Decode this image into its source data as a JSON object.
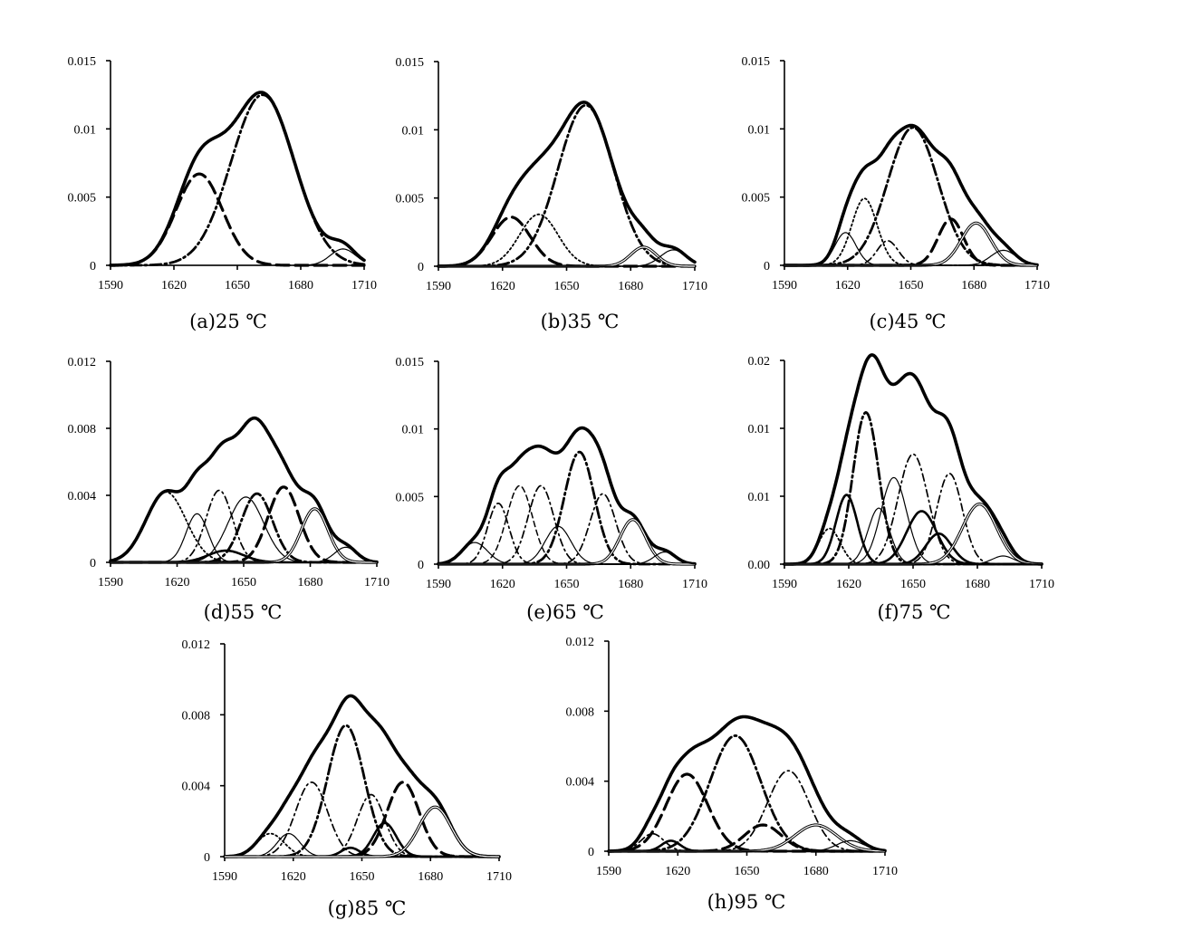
{
  "figure": {
    "background": "#ffffff",
    "line_color": "#000000"
  },
  "chart_data": [
    {
      "caption": "(a)25 ℃",
      "type": "line",
      "xticks": [
        "1590",
        "1620",
        "1650",
        "1680",
        "1710"
      ],
      "xlim": [
        1590,
        1710
      ],
      "yticks": [
        "0",
        "0.005",
        "0.01",
        "0.015"
      ],
      "ylim": [
        0,
        0.015
      ],
      "series": [
        {
          "style": "thick",
          "peaks": [
            [
              1632,
              0.0067,
              11
            ],
            [
              1662,
              0.0125,
              15
            ],
            [
              1700,
              0.0012,
              6
            ]
          ]
        },
        {
          "style": "longdash",
          "peaks": [
            [
              1632,
              0.0067,
              11
            ]
          ]
        },
        {
          "style": "dashdot",
          "peaks": [
            [
              1662,
              0.0125,
              15
            ]
          ]
        },
        {
          "style": "thin",
          "peaks": [
            [
              1700,
              0.0012,
              6
            ]
          ]
        }
      ]
    },
    {
      "caption": "(b)35 ℃",
      "type": "line",
      "xticks": [
        "1590",
        "1620",
        "1650",
        "1680",
        "1710"
      ],
      "xlim": [
        1590,
        1710
      ],
      "yticks": [
        "0",
        "0.005",
        "0.01",
        "0.015"
      ],
      "ylim": [
        0,
        0.015
      ],
      "series": [
        {
          "style": "thick",
          "peaks": [
            [
              1624,
              0.0036,
              9
            ],
            [
              1637,
              0.0038,
              9
            ],
            [
              1659,
              0.0118,
              13
            ],
            [
              1686,
              0.0014,
              6
            ],
            [
              1700,
              0.0012,
              6
            ]
          ]
        },
        {
          "style": "longdash",
          "peaks": [
            [
              1624,
              0.0036,
              9
            ]
          ]
        },
        {
          "style": "dotted",
          "peaks": [
            [
              1637,
              0.0038,
              9
            ]
          ]
        },
        {
          "style": "dashdot",
          "peaks": [
            [
              1659,
              0.0118,
              13
            ]
          ]
        },
        {
          "style": "double",
          "peaks": [
            [
              1686,
              0.0014,
              6
            ]
          ]
        },
        {
          "style": "thin",
          "peaks": [
            [
              1700,
              0.0012,
              6
            ]
          ]
        }
      ]
    },
    {
      "caption": "(c)45 ℃",
      "type": "line",
      "xticks": [
        "1590",
        "1620",
        "1650",
        "1680",
        "1710"
      ],
      "xlim": [
        1590,
        1710
      ],
      "yticks": [
        "0",
        "0.005",
        "0.01",
        "0.015"
      ],
      "ylim": [
        0,
        0.015
      ],
      "series": [
        {
          "style": "thick",
          "peaks": [
            [
              1619,
              0.0024,
              5
            ],
            [
              1628,
              0.0049,
              6
            ],
            [
              1639,
              0.0018,
              5
            ],
            [
              1651,
              0.0101,
              12
            ],
            [
              1669,
              0.0034,
              6
            ],
            [
              1681,
              0.0031,
              7
            ],
            [
              1694,
              0.0011,
              6
            ]
          ]
        },
        {
          "style": "thin",
          "peaks": [
            [
              1619,
              0.0024,
              5
            ]
          ]
        },
        {
          "style": "dotted",
          "peaks": [
            [
              1628,
              0.0049,
              6
            ]
          ]
        },
        {
          "style": "dashdot2",
          "peaks": [
            [
              1639,
              0.0018,
              5
            ]
          ]
        },
        {
          "style": "dashdot",
          "peaks": [
            [
              1651,
              0.0101,
              12
            ]
          ]
        },
        {
          "style": "longdash",
          "peaks": [
            [
              1669,
              0.0034,
              6
            ]
          ]
        },
        {
          "style": "double",
          "peaks": [
            [
              1681,
              0.0031,
              7
            ]
          ]
        },
        {
          "style": "thin",
          "peaks": [
            [
              1694,
              0.0011,
              6
            ]
          ]
        }
      ]
    },
    {
      "caption": "(d)55 ℃",
      "type": "line",
      "xticks": [
        "1590",
        "1620",
        "1650",
        "1680",
        "1710"
      ],
      "xlim": [
        1590,
        1710
      ],
      "yticks": [
        "0",
        "0.004",
        "0.008",
        "0.012"
      ],
      "ylim": [
        0,
        0.012
      ],
      "series": [
        {
          "style": "thick",
          "peaks": [
            [
              1615,
              0.0042,
              9
            ],
            [
              1629,
              0.0029,
              5
            ],
            [
              1639,
              0.0043,
              6
            ],
            [
              1642,
              0.0007,
              8
            ],
            [
              1651,
              0.0039,
              8
            ],
            [
              1656,
              0.0041,
              7
            ],
            [
              1668,
              0.0045,
              7
            ],
            [
              1682,
              0.0032,
              6
            ],
            [
              1696,
              0.0009,
              5
            ]
          ]
        },
        {
          "style": "dotted",
          "peaks": [
            [
              1615,
              0.0042,
              9
            ]
          ]
        },
        {
          "style": "thin",
          "peaks": [
            [
              1629,
              0.0029,
              5
            ]
          ]
        },
        {
          "style": "dashdot2",
          "peaks": [
            [
              1639,
              0.0043,
              6
            ]
          ]
        },
        {
          "style": "thick2",
          "peaks": [
            [
              1642,
              0.0007,
              8
            ]
          ]
        },
        {
          "style": "thin",
          "peaks": [
            [
              1651,
              0.0039,
              8
            ]
          ]
        },
        {
          "style": "dashdot",
          "peaks": [
            [
              1656,
              0.0041,
              7
            ]
          ]
        },
        {
          "style": "longdash",
          "peaks": [
            [
              1668,
              0.0045,
              7
            ]
          ]
        },
        {
          "style": "double",
          "peaks": [
            [
              1682,
              0.0032,
              6
            ]
          ]
        },
        {
          "style": "thin",
          "peaks": [
            [
              1696,
              0.0009,
              5
            ]
          ]
        }
      ]
    },
    {
      "caption": "(e)65 ℃",
      "type": "line",
      "xticks": [
        "1590",
        "1620",
        "1650",
        "1680",
        "1710"
      ],
      "xlim": [
        1590,
        1710
      ],
      "yticks": [
        "0",
        "0.005",
        "0.01",
        "0.015"
      ],
      "ylim": [
        0,
        0.015
      ],
      "series": [
        {
          "style": "thick",
          "peaks": [
            [
              1607,
              0.0016,
              6
            ],
            [
              1618,
              0.0045,
              5
            ],
            [
              1628,
              0.0058,
              6
            ],
            [
              1638,
              0.0058,
              6
            ],
            [
              1646,
              0.0028,
              6
            ],
            [
              1656,
              0.0083,
              7
            ],
            [
              1667,
              0.0052,
              6
            ],
            [
              1681,
              0.0033,
              6
            ],
            [
              1696,
              0.0009,
              5
            ]
          ]
        },
        {
          "style": "thin",
          "peaks": [
            [
              1607,
              0.0016,
              6
            ]
          ]
        },
        {
          "style": "dashdot2",
          "peaks": [
            [
              1618,
              0.0045,
              5
            ]
          ]
        },
        {
          "style": "dashed",
          "peaks": [
            [
              1628,
              0.0058,
              6
            ]
          ]
        },
        {
          "style": "dashdot2",
          "peaks": [
            [
              1638,
              0.0058,
              6
            ]
          ]
        },
        {
          "style": "thin",
          "peaks": [
            [
              1646,
              0.0028,
              6
            ]
          ]
        },
        {
          "style": "dashdot",
          "peaks": [
            [
              1656,
              0.0083,
              7
            ]
          ]
        },
        {
          "style": "dashdot2",
          "peaks": [
            [
              1667,
              0.0052,
              6
            ]
          ]
        },
        {
          "style": "double",
          "peaks": [
            [
              1681,
              0.0033,
              6
            ]
          ]
        },
        {
          "style": "thin",
          "peaks": [
            [
              1696,
              0.0009,
              5
            ]
          ]
        }
      ]
    },
    {
      "caption": "(f)75 ℃",
      "type": "line",
      "xticks": [
        "1590",
        "1620",
        "1650",
        "1680",
        "1710"
      ],
      "xlim": [
        1590,
        1710
      ],
      "yticks": [
        "0.00",
        "0.01",
        "0.01",
        "0.02"
      ],
      "ylim": [
        0,
        0.02
      ],
      "series": [
        {
          "style": "thick",
          "peaks": [
            [
              1611,
              0.0035,
              5
            ],
            [
              1619,
              0.0068,
              5
            ],
            [
              1628,
              0.0149,
              6
            ],
            [
              1634,
              0.0055,
              5
            ],
            [
              1641,
              0.0085,
              6
            ],
            [
              1650,
              0.0108,
              7
            ],
            [
              1654,
              0.0052,
              7
            ],
            [
              1662,
              0.003,
              6
            ],
            [
              1667,
              0.0089,
              6
            ],
            [
              1681,
              0.0059,
              8
            ],
            [
              1692,
              0.0008,
              5
            ]
          ]
        },
        {
          "style": "dotted",
          "peaks": [
            [
              1611,
              0.0035,
              5
            ]
          ]
        },
        {
          "style": "thick2",
          "peaks": [
            [
              1619,
              0.0068,
              5
            ]
          ]
        },
        {
          "style": "dashdot",
          "peaks": [
            [
              1628,
              0.0149,
              6
            ]
          ]
        },
        {
          "style": "thin",
          "peaks": [
            [
              1634,
              0.0055,
              5
            ]
          ]
        },
        {
          "style": "thin",
          "peaks": [
            [
              1641,
              0.0085,
              6
            ]
          ]
        },
        {
          "style": "dashdot2",
          "peaks": [
            [
              1650,
              0.0108,
              7
            ]
          ]
        },
        {
          "style": "thick2",
          "peaks": [
            [
              1654,
              0.0052,
              7
            ]
          ]
        },
        {
          "style": "thick2",
          "peaks": [
            [
              1662,
              0.003,
              6
            ]
          ]
        },
        {
          "style": "dashdot2",
          "peaks": [
            [
              1667,
              0.0089,
              6
            ]
          ]
        },
        {
          "style": "double",
          "peaks": [
            [
              1681,
              0.0059,
              8
            ]
          ]
        },
        {
          "style": "thin",
          "peaks": [
            [
              1692,
              0.0008,
              5
            ]
          ]
        }
      ]
    },
    {
      "caption": "(g)85 ℃",
      "type": "line",
      "xticks": [
        "1590",
        "1620",
        "1650",
        "1680",
        "1710"
      ],
      "xlim": [
        1590,
        1710
      ],
      "yticks": [
        "0",
        "0.004",
        "0.008",
        "0.012"
      ],
      "ylim": [
        0,
        0.012
      ],
      "series": [
        {
          "style": "thick",
          "peaks": [
            [
              1610,
              0.0013,
              6
            ],
            [
              1618,
              0.0013,
              5
            ],
            [
              1628,
              0.0042,
              7
            ],
            [
              1643,
              0.0074,
              8
            ],
            [
              1645,
              0.0005,
              4
            ],
            [
              1654,
              0.0035,
              6
            ],
            [
              1660,
              0.0019,
              5
            ],
            [
              1668,
              0.0042,
              7
            ],
            [
              1682,
              0.0028,
              7
            ]
          ]
        },
        {
          "style": "dotted",
          "peaks": [
            [
              1610,
              0.0013,
              6
            ]
          ]
        },
        {
          "style": "thin",
          "peaks": [
            [
              1618,
              0.0013,
              5
            ]
          ]
        },
        {
          "style": "dashdot2",
          "peaks": [
            [
              1628,
              0.0042,
              7
            ]
          ]
        },
        {
          "style": "dashdot",
          "peaks": [
            [
              1643,
              0.0074,
              8
            ]
          ]
        },
        {
          "style": "thick2",
          "peaks": [
            [
              1645,
              0.0005,
              4
            ]
          ]
        },
        {
          "style": "dashdot2",
          "peaks": [
            [
              1654,
              0.0035,
              6
            ]
          ]
        },
        {
          "style": "thick2",
          "peaks": [
            [
              1660,
              0.0019,
              5
            ]
          ]
        },
        {
          "style": "longdash",
          "peaks": [
            [
              1668,
              0.0042,
              7
            ]
          ]
        },
        {
          "style": "double",
          "peaks": [
            [
              1682,
              0.0028,
              7
            ]
          ]
        }
      ]
    },
    {
      "caption": "(h)95 ℃",
      "type": "line",
      "xticks": [
        "1590",
        "1620",
        "1650",
        "1680",
        "1710"
      ],
      "xlim": [
        1590,
        1710
      ],
      "yticks": [
        "0",
        "0.004",
        "0.008",
        "0.012"
      ],
      "ylim": [
        0,
        0.012
      ],
      "series": [
        {
          "style": "thick",
          "peaks": [
            [
              1609,
              0.001,
              5
            ],
            [
              1617,
              0.0006,
              4
            ],
            [
              1624,
              0.0044,
              9
            ],
            [
              1645,
              0.0066,
              11
            ],
            [
              1657,
              0.0015,
              8
            ],
            [
              1668,
              0.0046,
              9
            ],
            [
              1680,
              0.0015,
              9
            ],
            [
              1695,
              0.0006,
              6
            ]
          ]
        },
        {
          "style": "dashdot2",
          "peaks": [
            [
              1609,
              0.001,
              5
            ]
          ]
        },
        {
          "style": "thick2",
          "peaks": [
            [
              1617,
              0.0006,
              4
            ]
          ]
        },
        {
          "style": "longdash",
          "peaks": [
            [
              1624,
              0.0044,
              9
            ]
          ]
        },
        {
          "style": "dashdot",
          "peaks": [
            [
              1645,
              0.0066,
              11
            ]
          ]
        },
        {
          "style": "longdash",
          "peaks": [
            [
              1657,
              0.0015,
              8
            ]
          ]
        },
        {
          "style": "dashdot2",
          "peaks": [
            [
              1668,
              0.0046,
              9
            ]
          ]
        },
        {
          "style": "double",
          "peaks": [
            [
              1680,
              0.0015,
              9
            ]
          ]
        },
        {
          "style": "thin",
          "peaks": [
            [
              1695,
              0.0006,
              6
            ]
          ]
        }
      ]
    }
  ]
}
